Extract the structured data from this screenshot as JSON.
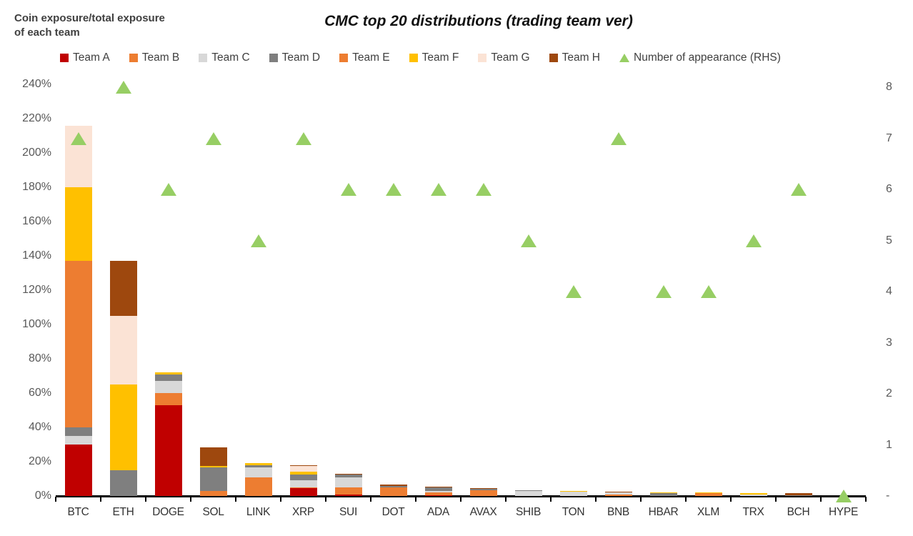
{
  "header": {
    "axis_title": "Coin exposure/total exposure\nof each team",
    "title": "CMC top 20 distributions (trading team ver)"
  },
  "colors": {
    "team_a": "#C00000",
    "team_b": "#ED7D31",
    "team_c": "#D8D8D8",
    "team_d": "#7F7F7F",
    "team_e": "#ED7D31",
    "team_f": "#FFC000",
    "team_g": "#FBE3D5",
    "team_h": "#9E480E",
    "marker_green": "#97CE64",
    "axis_text": "#595959",
    "axis_line": "#000000"
  },
  "legend": [
    {
      "label": "Team A",
      "color": "#C00000",
      "shape": "square"
    },
    {
      "label": "Team B",
      "color": "#ED7D31",
      "shape": "square"
    },
    {
      "label": "Team C",
      "color": "#D8D8D8",
      "shape": "square"
    },
    {
      "label": "Team D",
      "color": "#7F7F7F",
      "shape": "square"
    },
    {
      "label": "Team E",
      "color": "#ED7D31",
      "shape": "square"
    },
    {
      "label": "Team F",
      "color": "#FFC000",
      "shape": "square"
    },
    {
      "label": "Team G",
      "color": "#FBE3D5",
      "shape": "square"
    },
    {
      "label": "Team H",
      "color": "#9E480E",
      "shape": "square"
    },
    {
      "label": "Number of appearance (RHS)",
      "color": "#97CE64",
      "shape": "triangle"
    }
  ],
  "chart_data": {
    "type": "bar",
    "subtype": "stacked-column-with-scatter-markers",
    "title": "CMC top 20 distributions (trading team ver)",
    "ylabel": "Coin exposure/total exposure of each team",
    "categories": [
      "BTC",
      "ETH",
      "DOGE",
      "SOL",
      "LINK",
      "XRP",
      "SUI",
      "DOT",
      "ADA",
      "AVAX",
      "SHIB",
      "TON",
      "BNB",
      "HBAR",
      "XLM",
      "TRX",
      "BCH",
      "HYPE"
    ],
    "series": [
      {
        "name": "Team A",
        "color": "#C00000",
        "values": [
          30,
          0,
          53,
          0,
          0,
          4.5,
          1,
          0,
          0.5,
          0,
          0,
          0,
          0,
          0,
          0,
          0,
          0,
          0
        ]
      },
      {
        "name": "Team B",
        "color": "#ED7D31",
        "values": [
          0,
          0,
          7,
          3,
          11,
          0.5,
          4,
          5,
          1.5,
          3.5,
          0,
          0,
          1,
          0,
          1.5,
          0,
          0,
          0
        ]
      },
      {
        "name": "Team C",
        "color": "#D8D8D8",
        "values": [
          5,
          0,
          7,
          0,
          5.5,
          4,
          6,
          0,
          1,
          0,
          3,
          2.5,
          1,
          0,
          0,
          1,
          0,
          0
        ]
      },
      {
        "name": "Team D",
        "color": "#7F7F7F",
        "values": [
          5,
          15,
          4,
          13.5,
          1.5,
          3.5,
          1.5,
          1,
          2,
          0.5,
          0.5,
          0,
          0,
          1.5,
          0,
          0,
          0.5,
          0
        ]
      },
      {
        "name": "Team E",
        "color": "#ED7D31",
        "values": [
          97,
          0,
          0,
          0,
          0,
          0,
          0,
          0,
          0,
          0,
          0,
          0,
          0,
          0,
          0,
          0,
          0,
          0
        ]
      },
      {
        "name": "Team F",
        "color": "#FFC000",
        "values": [
          43,
          50,
          1,
          1,
          1,
          1.5,
          0,
          0,
          0,
          0,
          0,
          0.5,
          0,
          0.5,
          0.5,
          0.5,
          0,
          0
        ]
      },
      {
        "name": "Team G",
        "color": "#FBE3D5",
        "values": [
          36,
          40,
          0,
          0,
          0,
          3.5,
          0,
          0,
          0,
          0,
          0,
          0,
          0,
          0,
          0,
          0,
          0,
          0
        ]
      },
      {
        "name": "Team H",
        "color": "#9E480E",
        "values": [
          0,
          32,
          0,
          11,
          0,
          0.5,
          0.5,
          0.5,
          0.5,
          0.5,
          0,
          0,
          0.5,
          0,
          0,
          0,
          1,
          0
        ]
      }
    ],
    "marker_series": {
      "name": "Number of appearance (RHS)",
      "color": "#97CE64",
      "marker": "triangle",
      "values": [
        7,
        8,
        6,
        7,
        5,
        7,
        6,
        6,
        6,
        6,
        5,
        4,
        7,
        4,
        4,
        5,
        6,
        0
      ]
    },
    "left_axis": {
      "min": 0,
      "max": 240,
      "step": 20,
      "format": "percent",
      "tick_labels": [
        "0%",
        "20%",
        "40%",
        "60%",
        "80%",
        "100%",
        "120%",
        "140%",
        "160%",
        "180%",
        "200%",
        "220%",
        "240%"
      ]
    },
    "right_axis": {
      "min": 0,
      "max": 8,
      "step": 1,
      "tick_labels": [
        "-",
        "1",
        "2",
        "3",
        "4",
        "5",
        "6",
        "7",
        "8"
      ]
    },
    "grid": false,
    "legend_position": "top"
  }
}
